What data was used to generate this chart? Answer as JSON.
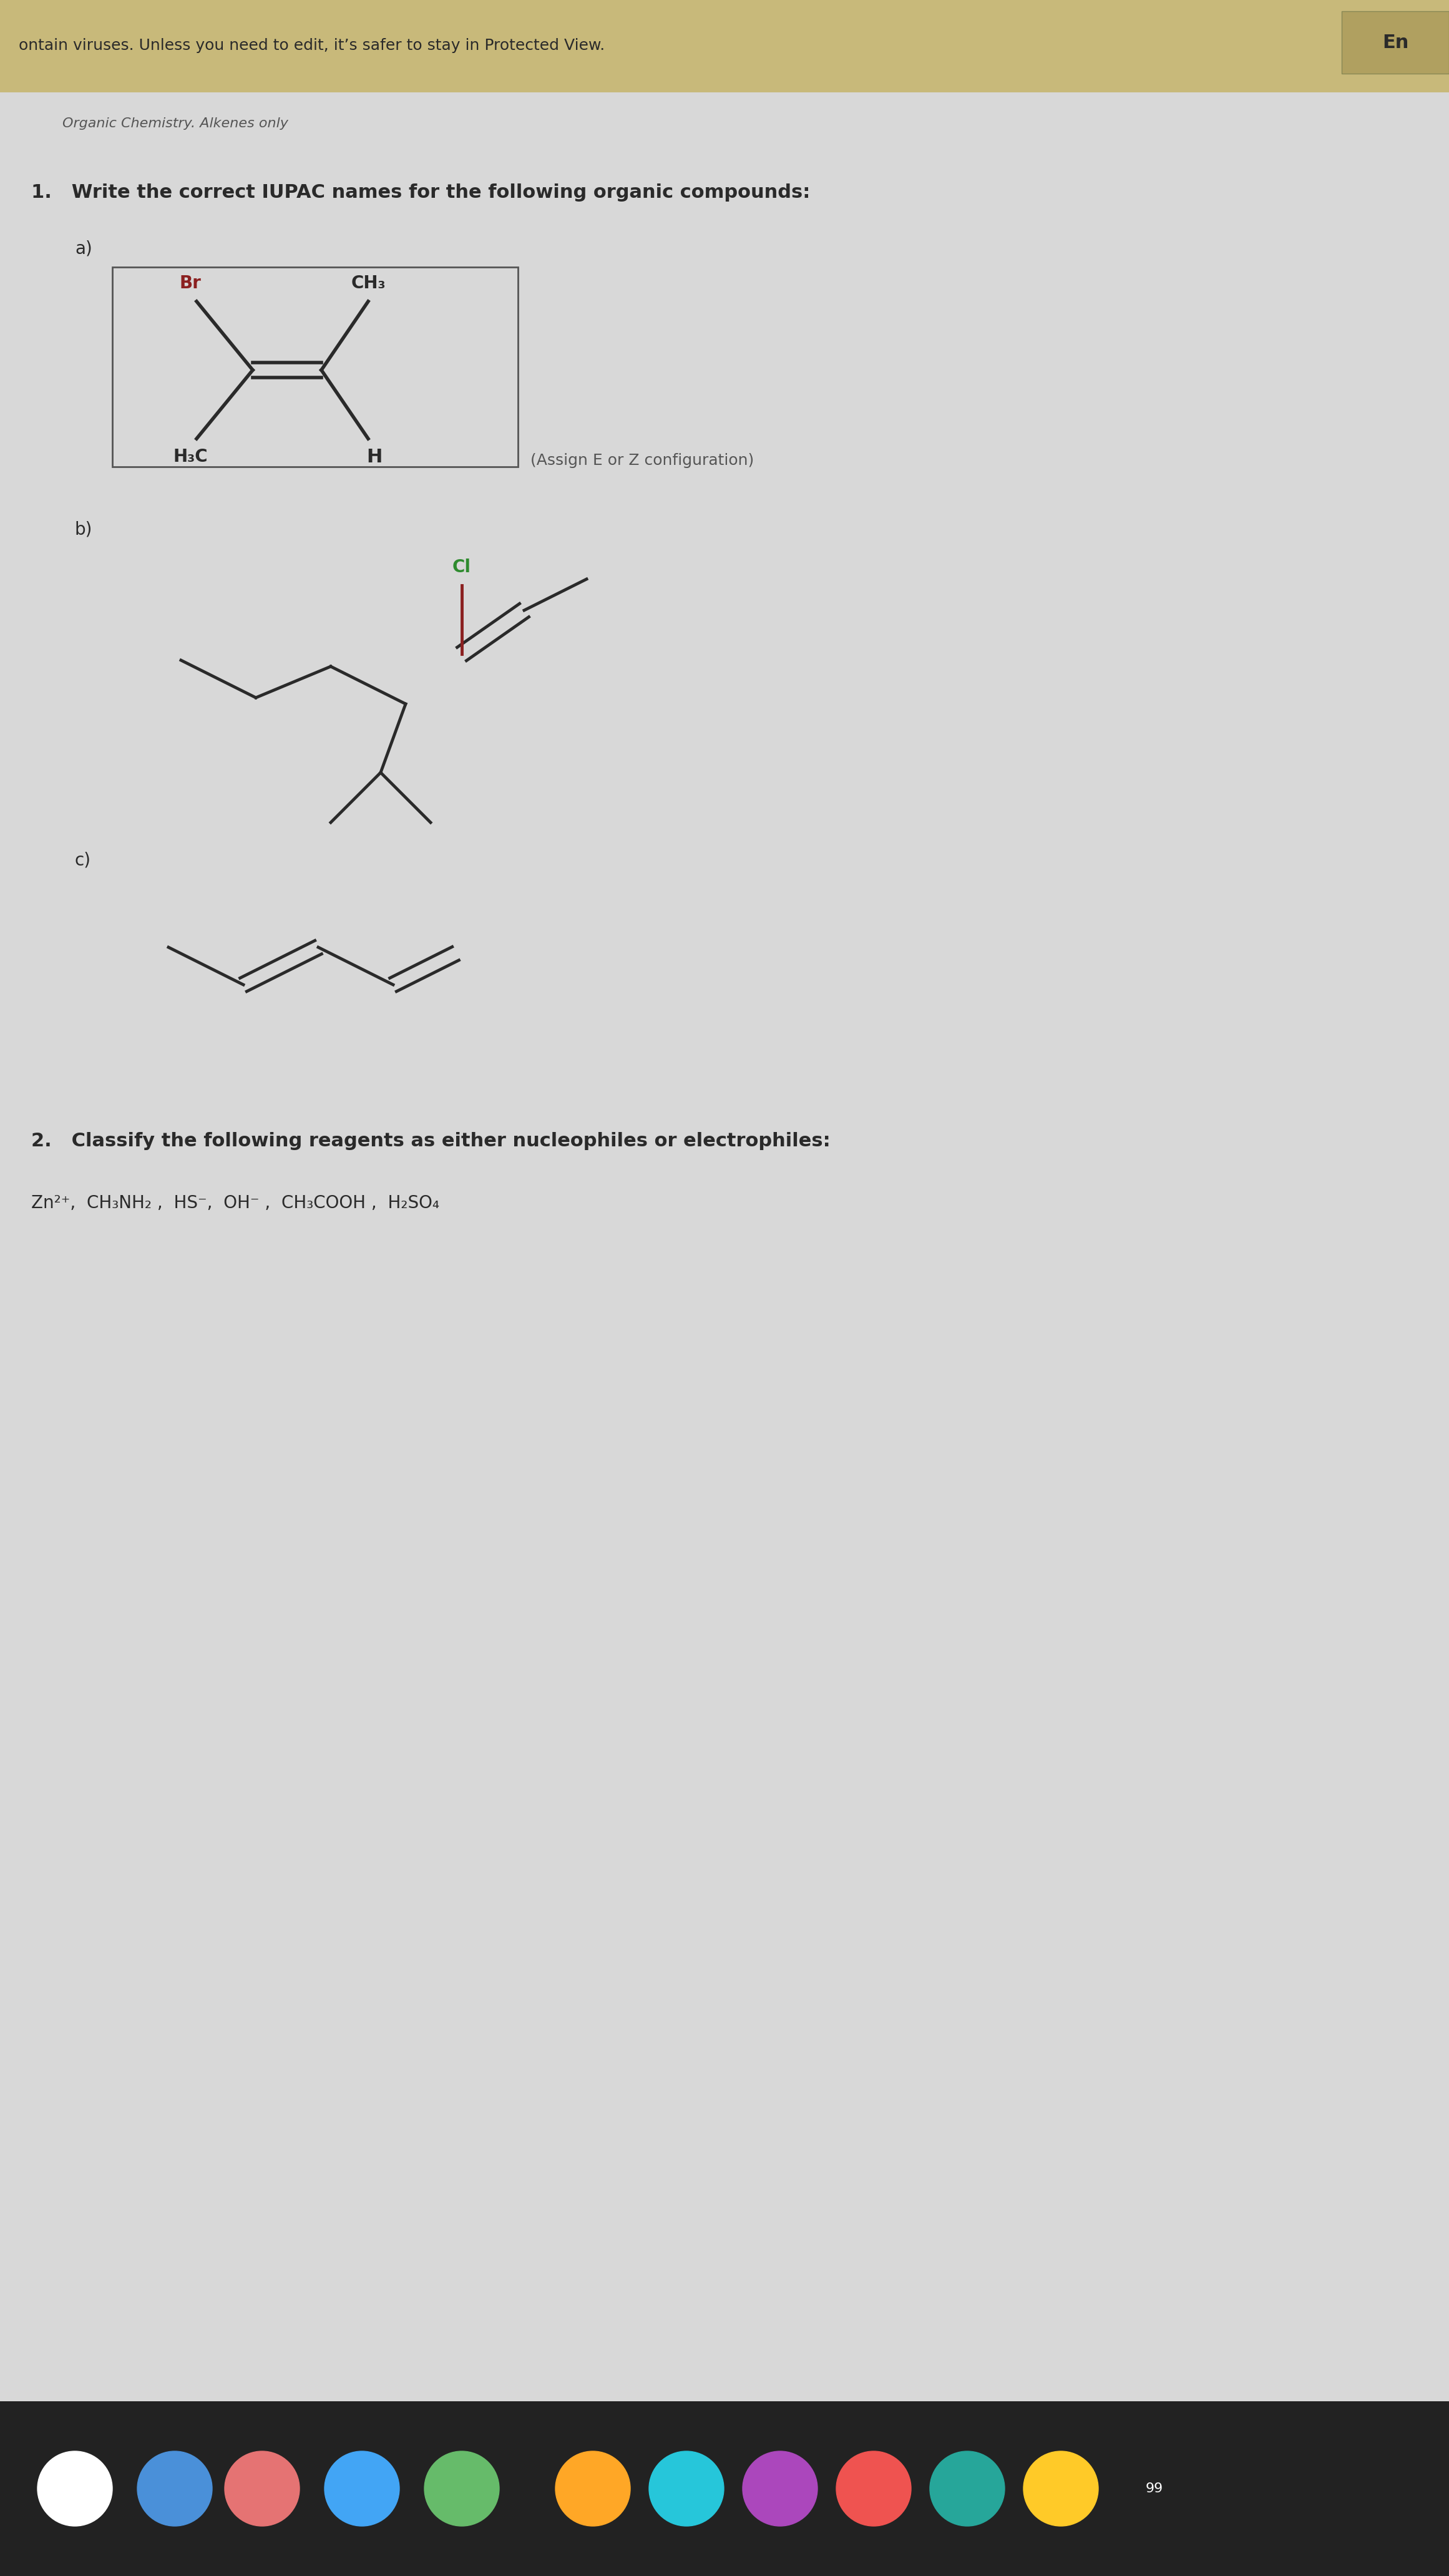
{
  "background_color": "#d8d8d8",
  "top_bar_color": "#c8b97a",
  "top_bar_text": "ontain viruses. Unless you need to edit, it’s safer to stay in Protected View.",
  "top_bar_text2": "En",
  "subtitle_text": "Organic Chemistry. Alkenes only",
  "question1_text": "1.   Write the correct IUPAC names for the following organic compounds:",
  "question2_text": "2.   Classify the following reagents as either nucleophiles or electrophiles:",
  "question2_reagents": "Zn²⁺,  CH₃NH₂ ,  HS⁻,  OH⁻ ,  CH₃COOH ,  H₂SO₄",
  "label_a": "a)",
  "label_b": "b)",
  "label_c": "c)",
  "assign_ez": "(Assign E or Z configuration)",
  "mol_a_box_color": "#cccccc",
  "bond_color": "#2a2a2a",
  "br_color": "#8b2020",
  "cl_color": "#2e8b2e",
  "text_color": "#2a2a2a",
  "fig_width": 23.22,
  "fig_height": 41.28
}
